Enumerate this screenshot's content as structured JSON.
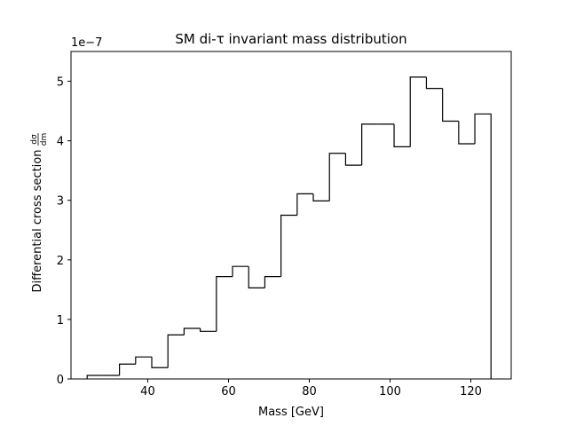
{
  "chart_data": {
    "type": "step",
    "title": "SM di-τ invariant mass distribution",
    "xlabel": "Mass [GeV]",
    "ylabel": "Differential cross section",
    "ylabel_fraction": {
      "numerator": "dσ",
      "denominator": "dm"
    },
    "y_offset_label": "1e−7",
    "y_multiplier": 1e-07,
    "xlim": [
      21,
      130
    ],
    "ylim": [
      0,
      5.5
    ],
    "xticks": [
      40,
      60,
      80,
      100,
      120
    ],
    "xtick_labels": [
      "40",
      "60",
      "80",
      "100",
      "120"
    ],
    "yticks": [
      0,
      1,
      2,
      3,
      4,
      5
    ],
    "ytick_labels": [
      "0",
      "1",
      "2",
      "3",
      "4",
      "5"
    ],
    "grid": false,
    "legend": false,
    "line_color": "#000000",
    "bin_edges": [
      25,
      29,
      33,
      37,
      41,
      45,
      49,
      53,
      57,
      61,
      65,
      69,
      73,
      77,
      81,
      85,
      89,
      93,
      97,
      101,
      105,
      109,
      113,
      117,
      121,
      125
    ],
    "values": [
      0.06,
      0.06,
      0.25,
      0.37,
      0.19,
      0.74,
      0.85,
      0.8,
      1.72,
      1.89,
      1.53,
      1.72,
      2.75,
      3.11,
      2.99,
      3.79,
      3.59,
      4.28,
      4.28,
      3.9,
      5.07,
      4.88,
      4.33,
      3.95,
      4.45
    ]
  }
}
